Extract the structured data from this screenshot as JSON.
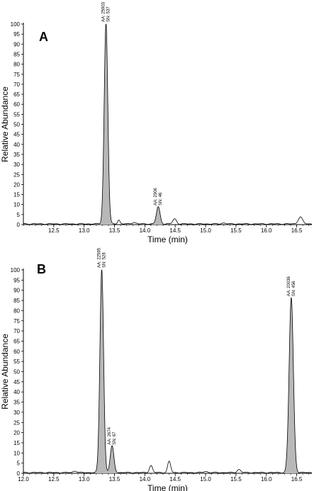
{
  "figure": {
    "chart_data": [
      {
        "type": "area",
        "panel_label": "A",
        "xlabel": "Time (min)",
        "ylabel": "Relative Abundance",
        "xlim": [
          12.0,
          16.75
        ],
        "ylim": [
          0,
          100
        ],
        "xticks": [
          12.5,
          13.0,
          13.5,
          14.0,
          14.5,
          15.0,
          15.5,
          16.0,
          16.5
        ],
        "yticks": [
          0,
          5,
          10,
          15,
          20,
          25,
          30,
          35,
          40,
          45,
          50,
          55,
          60,
          65,
          70,
          75,
          80,
          85,
          90,
          95,
          100
        ],
        "peaks": [
          {
            "rt": 13.36,
            "height": 100,
            "width": 0.03,
            "shaded": true,
            "annotation": [
              "AA: 25903",
              "SN: 537"
            ]
          },
          {
            "rt": 13.57,
            "height": 2,
            "width": 0.02,
            "shaded": false
          },
          {
            "rt": 13.82,
            "height": 0.8,
            "width": 0.03,
            "shaded": false
          },
          {
            "rt": 14.22,
            "height": 8.5,
            "width": 0.03,
            "shaded": true,
            "annotation": [
              "AA: 2906",
              "SN: 46"
            ]
          },
          {
            "rt": 14.49,
            "height": 2.5,
            "width": 0.03,
            "shaded": false
          },
          {
            "rt": 15.3,
            "height": 0.5,
            "width": 0.03,
            "shaded": false
          },
          {
            "rt": 16.56,
            "height": 3.5,
            "width": 0.035,
            "shaded": false
          }
        ]
      },
      {
        "type": "area",
        "panel_label": "B",
        "xlabel": "Time (min)",
        "ylabel": "Relative Abundance",
        "xlim": [
          12.0,
          16.75
        ],
        "ylim": [
          0,
          100
        ],
        "xticks": [
          12.0,
          12.5,
          13.0,
          13.5,
          14.0,
          14.5,
          15.0,
          15.5,
          16.0,
          16.5
        ],
        "yticks": [
          0,
          5,
          10,
          15,
          20,
          25,
          30,
          35,
          40,
          45,
          50,
          55,
          60,
          65,
          70,
          75,
          80,
          85,
          90,
          95,
          100
        ],
        "peaks": [
          {
            "rt": 12.85,
            "height": 0.8,
            "width": 0.03,
            "shaded": false
          },
          {
            "rt": 13.29,
            "height": 100,
            "width": 0.03,
            "shaded": true,
            "annotation": [
              "AA: 22595",
              "SN: 528"
            ]
          },
          {
            "rt": 13.46,
            "height": 13,
            "width": 0.03,
            "shaded": true,
            "annotation": [
              "AA: 2674",
              "SN: 67"
            ]
          },
          {
            "rt": 14.1,
            "height": 3.5,
            "width": 0.025,
            "shaded": false
          },
          {
            "rt": 14.4,
            "height": 5.5,
            "width": 0.025,
            "shaded": false
          },
          {
            "rt": 15.0,
            "height": 0.6,
            "width": 0.03,
            "shaded": false
          },
          {
            "rt": 15.55,
            "height": 1.5,
            "width": 0.03,
            "shaded": false
          },
          {
            "rt": 16.41,
            "height": 86,
            "width": 0.035,
            "shaded": true,
            "annotation": [
              "AA: 20036",
              "SN: 456"
            ]
          }
        ]
      }
    ]
  }
}
